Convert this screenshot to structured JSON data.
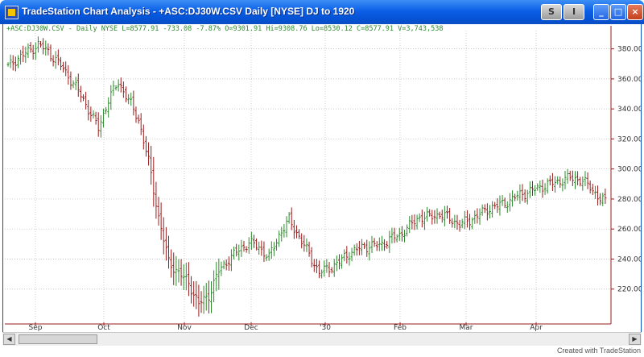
{
  "window": {
    "title": "TradeStation Chart Analysis - +ASC:DJ30W.CSV  Daily  [NYSE] DJ to 1920",
    "buttons": {
      "s": "S",
      "i": "I",
      "minimize": "_",
      "maximize": "□",
      "close": "×"
    }
  },
  "legend": {
    "text": "+ASC:DJ30W.CSV - Daily  NYSE  L=8577.91  -733.08  -7.87%  O=9301.91  Hi=9308.76  Lo=8530.12  C=8577.91  V=3,743,538",
    "color": "#2e8b2e"
  },
  "footer": {
    "credit": "Created with TradeStation"
  },
  "colors": {
    "up": "#2e8b2e",
    "down": "#9a1b1b",
    "grid": "#b8b8b8",
    "axis": "#9a1b1b"
  },
  "chart_data": {
    "type": "bar",
    "subtype": "ohlc",
    "y_axis": {
      "ticks": [
        220,
        240,
        260,
        280,
        300,
        320,
        340,
        360,
        380
      ],
      "ylim": [
        200,
        390
      ],
      "side": "right"
    },
    "x_axis": {
      "labels": [
        "Sep",
        "Oct",
        "Nov",
        "Dec",
        "'30",
        "Feb",
        "Mar",
        "Apr"
      ]
    },
    "grid": true,
    "anchors": [
      [
        0,
        368
      ],
      [
        4,
        374
      ],
      [
        8,
        378
      ],
      [
        12,
        383
      ],
      [
        16,
        378
      ],
      [
        20,
        371
      ],
      [
        24,
        362
      ],
      [
        28,
        352
      ],
      [
        32,
        340
      ],
      [
        36,
        327
      ],
      [
        40,
        346
      ],
      [
        44,
        358
      ],
      [
        48,
        346
      ],
      [
        52,
        333
      ],
      [
        56,
        305
      ],
      [
        60,
        268
      ],
      [
        64,
        238
      ],
      [
        68,
        231
      ],
      [
        72,
        224
      ],
      [
        76,
        210
      ],
      [
        80,
        216
      ],
      [
        84,
        232
      ],
      [
        88,
        240
      ],
      [
        92,
        246
      ],
      [
        96,
        251
      ],
      [
        100,
        248
      ],
      [
        104,
        241
      ],
      [
        108,
        256
      ],
      [
        112,
        266
      ],
      [
        116,
        255
      ],
      [
        120,
        243
      ],
      [
        124,
        231
      ],
      [
        128,
        234
      ],
      [
        132,
        238
      ],
      [
        136,
        244
      ],
      [
        140,
        247
      ],
      [
        144,
        249
      ],
      [
        148,
        249
      ],
      [
        152,
        253
      ],
      [
        156,
        256
      ],
      [
        160,
        262
      ],
      [
        164,
        268
      ],
      [
        168,
        268
      ],
      [
        172,
        270
      ],
      [
        176,
        267
      ],
      [
        180,
        263
      ],
      [
        184,
        266
      ],
      [
        188,
        270
      ],
      [
        192,
        274
      ],
      [
        196,
        276
      ],
      [
        200,
        279
      ],
      [
        204,
        283
      ],
      [
        208,
        285
      ],
      [
        212,
        288
      ],
      [
        216,
        290
      ],
      [
        220,
        292
      ],
      [
        224,
        294
      ],
      [
        228,
        293
      ],
      [
        232,
        288
      ],
      [
        236,
        280
      ],
      [
        238,
        278
      ]
    ]
  }
}
